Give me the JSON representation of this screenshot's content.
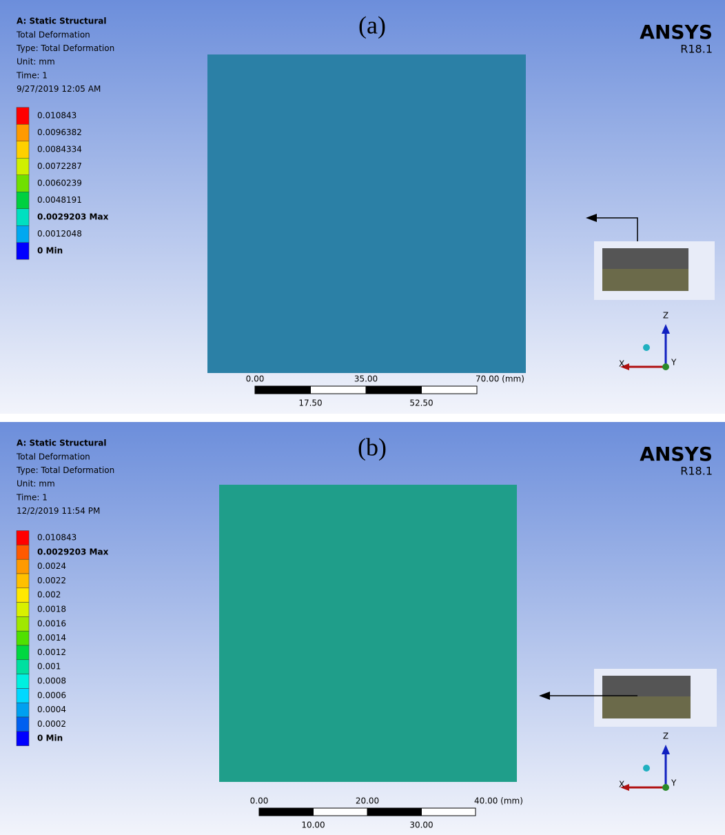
{
  "panels": [
    {
      "label": "(a)",
      "header": {
        "title": "A: Static Structural",
        "lines": [
          "Total Deformation",
          "Type: Total Deformation",
          "Unit: mm",
          "Time: 1",
          "9/27/2019 12:05 AM"
        ]
      },
      "legend": [
        {
          "label": "0.010843",
          "color": "#ff0000"
        },
        {
          "label": "0.0096382",
          "color": "#ff9a00"
        },
        {
          "label": "0.0084334",
          "color": "#ffd000"
        },
        {
          "label": "0.0072287",
          "color": "#d0f000"
        },
        {
          "label": "0.0060239",
          "color": "#70e000"
        },
        {
          "label": "0.0048191",
          "color": "#00d040"
        },
        {
          "label": "0.0029203 Max",
          "color": "#00e0c0",
          "bold": true
        },
        {
          "label": "0.0012048",
          "color": "#00a8f0"
        },
        {
          "label": "0 Min",
          "color": "#0000ff",
          "bold": true
        }
      ],
      "logo": {
        "name": "ANSYS",
        "version": "R18.1"
      },
      "plate_color": "#2b80a6",
      "scale": {
        "top": [
          "0.00",
          "35.00",
          "70.00 (mm)"
        ],
        "bottom": [
          "17.50",
          "52.50"
        ]
      },
      "axes": [
        "X",
        "Y",
        "Z"
      ]
    },
    {
      "label": "(b)",
      "header": {
        "title": "A: Static Structural",
        "lines": [
          "Total Deformation",
          "Type: Total Deformation",
          "Unit: mm",
          "Time: 1",
          "12/2/2019 11:54 PM"
        ]
      },
      "legend": [
        {
          "label": "0.010843",
          "color": "#ff0000"
        },
        {
          "label": "0.0029203 Max",
          "color": "#ff5a00",
          "bold": true
        },
        {
          "label": "0.0024",
          "color": "#ff9a00"
        },
        {
          "label": "0.0022",
          "color": "#ffc000"
        },
        {
          "label": "0.002",
          "color": "#ffe800"
        },
        {
          "label": "0.0018",
          "color": "#d8f000"
        },
        {
          "label": "0.0016",
          "color": "#a0e800"
        },
        {
          "label": "0.0014",
          "color": "#50e000"
        },
        {
          "label": "0.0012",
          "color": "#00d840"
        },
        {
          "label": "0.001",
          "color": "#00e0a0"
        },
        {
          "label": "0.0008",
          "color": "#00f0e0"
        },
        {
          "label": "0.0006",
          "color": "#00d8ff"
        },
        {
          "label": "0.0004",
          "color": "#00a0f0"
        },
        {
          "label": "0.0002",
          "color": "#0060f0"
        },
        {
          "label": "0 Min",
          "color": "#0000ff",
          "bold": true
        }
      ],
      "logo": {
        "name": "ANSYS",
        "version": "R18.1"
      },
      "plate_color": "#1f9e8a",
      "scale": {
        "top": [
          "0.00",
          "20.00",
          "40.00 (mm)"
        ],
        "bottom": [
          "10.00",
          "30.00"
        ]
      },
      "axes": [
        "X",
        "Y",
        "Z"
      ]
    }
  ]
}
